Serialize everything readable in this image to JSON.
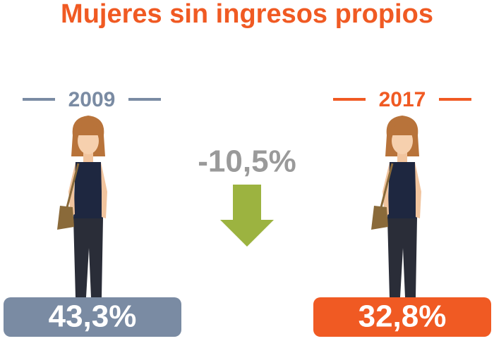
{
  "title": "Mujeres sin ingresos propios",
  "left": {
    "year": "2009",
    "value": "43,3%"
  },
  "change": "-10,5%",
  "right": {
    "year": "2017",
    "value": "32,8%"
  }
}
